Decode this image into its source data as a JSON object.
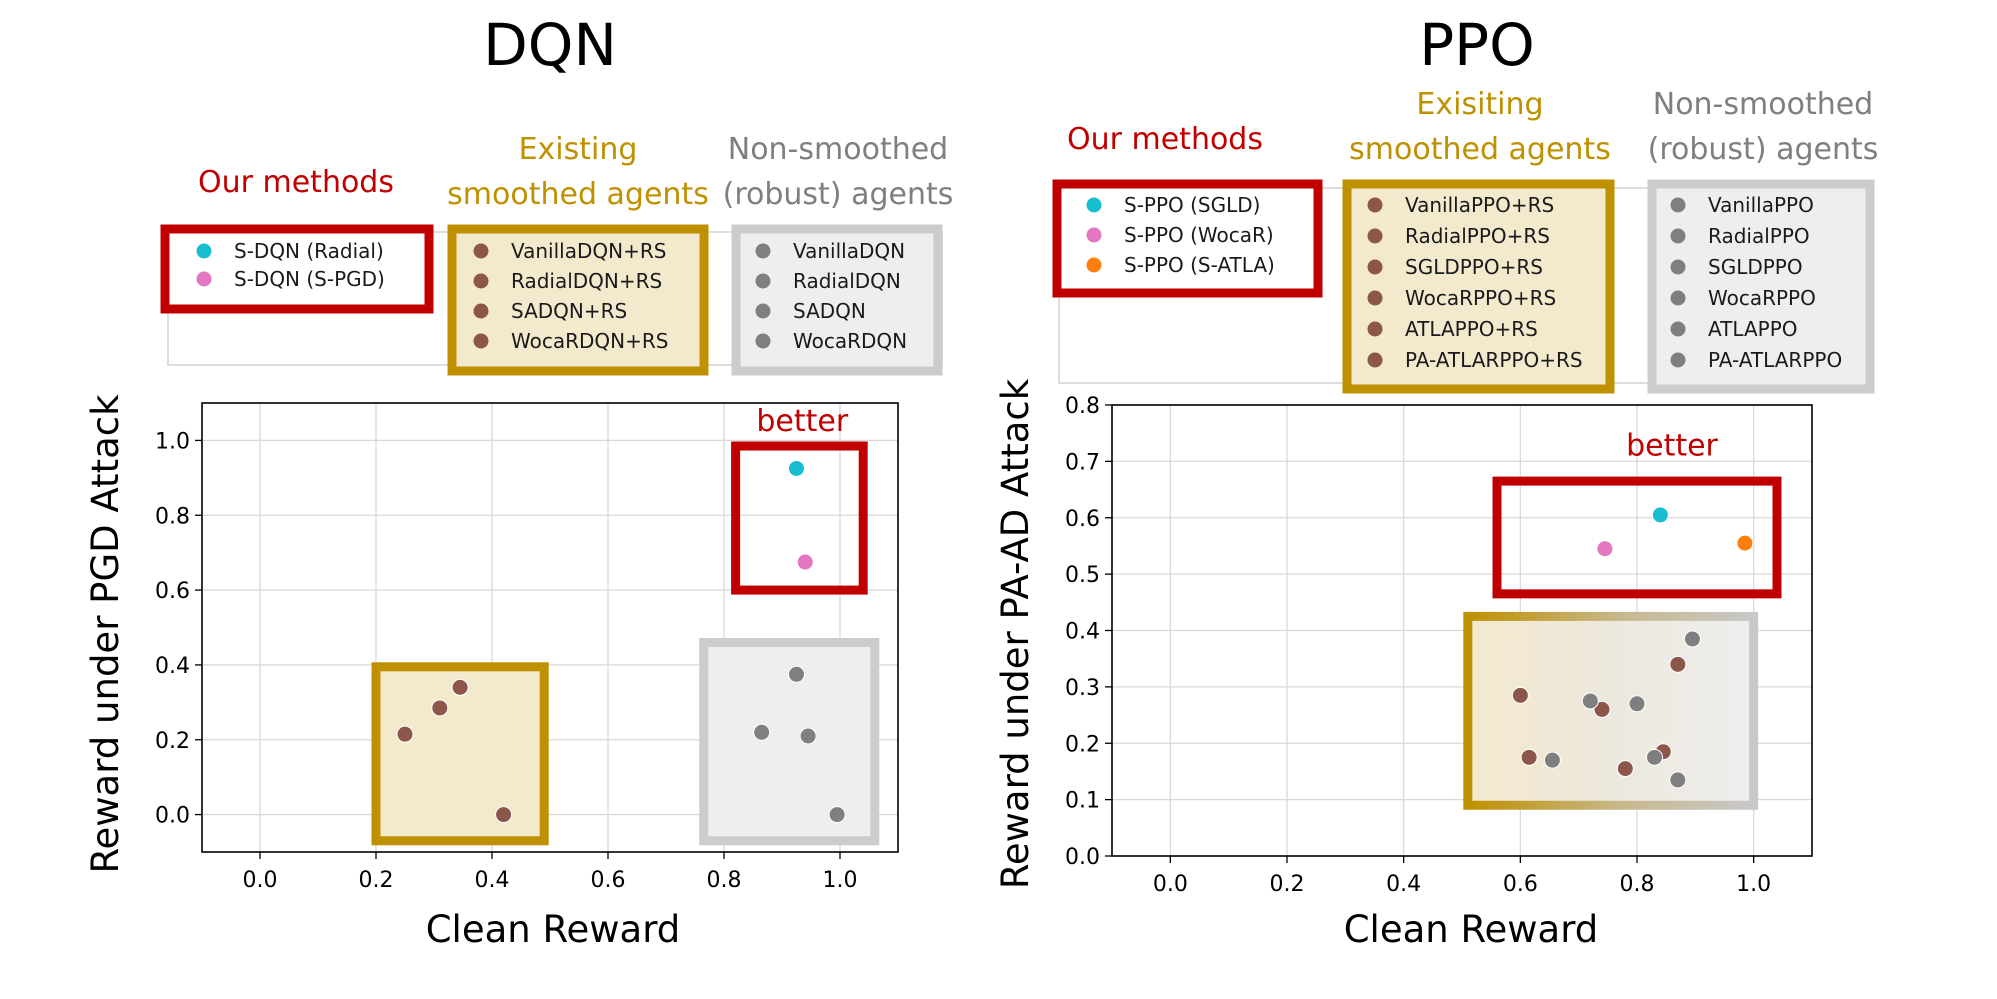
{
  "colors": {
    "ours_frame": "#c00000",
    "smoothed_frame": "#bf9000",
    "smoothed_fill": "#f3e9cd",
    "nonsmoothed_frame": "#cccccc",
    "nonsmoothed_fill": "#eeeeee",
    "ours_text": "#c00000",
    "smoothed_text": "#bf9000",
    "nonsmoothed_text": "#7f7f7f",
    "cyan": "#17becf",
    "pink": "#e377c2",
    "orange": "#ff7f0e",
    "brown": "#8c564b",
    "gray": "#7f7f7f"
  },
  "chart_data": [
    {
      "type": "scatter",
      "title": "DQN",
      "xlabel": "Clean Reward",
      "ylabel": "Reward under PGD Attack",
      "xlim": [
        -0.1,
        1.1
      ],
      "ylim": [
        -0.1,
        1.1
      ],
      "xticks": [
        0.0,
        0.2,
        0.4,
        0.6,
        0.8,
        1.0
      ],
      "yticks": [
        0.0,
        0.2,
        0.4,
        0.6,
        0.8,
        1.0
      ],
      "grid": true,
      "annotation": "better",
      "legend_groups": [
        {
          "label": "Our methods",
          "entries": [
            {
              "name": "S-DQN (Radial)",
              "color": "cyan"
            },
            {
              "name": "S-DQN (S-PGD)",
              "color": "pink"
            }
          ]
        },
        {
          "label": "Existing smoothed agents",
          "entries": [
            {
              "name": "VanillaDQN+RS",
              "color": "brown"
            },
            {
              "name": "RadialDQN+RS",
              "color": "brown"
            },
            {
              "name": "SADQN+RS",
              "color": "brown"
            },
            {
              "name": "WocaRDQN+RS",
              "color": "brown"
            }
          ]
        },
        {
          "label": "Non-smoothed (robust) agents",
          "entries": [
            {
              "name": "VanillaDQN",
              "color": "gray"
            },
            {
              "name": "RadialDQN",
              "color": "gray"
            },
            {
              "name": "SADQN",
              "color": "gray"
            },
            {
              "name": "WocaRDQN",
              "color": "gray"
            }
          ]
        }
      ],
      "points": [
        {
          "x": 0.925,
          "y": 0.925,
          "color": "cyan"
        },
        {
          "x": 0.94,
          "y": 0.675,
          "color": "pink"
        },
        {
          "x": 0.25,
          "y": 0.215,
          "color": "brown"
        },
        {
          "x": 0.31,
          "y": 0.285,
          "color": "brown"
        },
        {
          "x": 0.345,
          "y": 0.34,
          "color": "brown"
        },
        {
          "x": 0.42,
          "y": 0.0,
          "color": "brown"
        },
        {
          "x": 0.925,
          "y": 0.375,
          "color": "gray"
        },
        {
          "x": 0.865,
          "y": 0.22,
          "color": "gray"
        },
        {
          "x": 0.945,
          "y": 0.21,
          "color": "gray"
        },
        {
          "x": 0.995,
          "y": 0.0,
          "color": "gray"
        }
      ]
    },
    {
      "type": "scatter",
      "title": "PPO",
      "xlabel": "Clean Reward",
      "ylabel": "Reward under PA-AD Attack",
      "xlim": [
        -0.1,
        1.1
      ],
      "ylim": [
        0.0,
        0.8
      ],
      "xticks": [
        0.0,
        0.2,
        0.4,
        0.6,
        0.8,
        1.0
      ],
      "yticks": [
        0.0,
        0.1,
        0.2,
        0.3,
        0.4,
        0.5,
        0.6,
        0.7,
        0.8
      ],
      "grid": true,
      "annotation": "better",
      "legend_groups": [
        {
          "label": "Our methods",
          "entries": [
            {
              "name": "S-PPO (SGLD)",
              "color": "cyan"
            },
            {
              "name": "S-PPO (WocaR)",
              "color": "pink"
            },
            {
              "name": "S-PPO (S-ATLA)",
              "color": "orange"
            }
          ]
        },
        {
          "label": "Exisiting smoothed agents",
          "entries": [
            {
              "name": "VanillaPPO+RS",
              "color": "brown"
            },
            {
              "name": "RadialPPO+RS",
              "color": "brown"
            },
            {
              "name": "SGLDPPO+RS",
              "color": "brown"
            },
            {
              "name": "WocaRPPO+RS",
              "color": "brown"
            },
            {
              "name": "ATLAPPO+RS",
              "color": "brown"
            },
            {
              "name": "PA-ATLARPPO+RS",
              "color": "brown"
            }
          ]
        },
        {
          "label": "Non-smoothed (robust) agents",
          "entries": [
            {
              "name": "VanillaPPO",
              "color": "gray"
            },
            {
              "name": "RadialPPO",
              "color": "gray"
            },
            {
              "name": "SGLDPPO",
              "color": "gray"
            },
            {
              "name": "WocaRPPO",
              "color": "gray"
            },
            {
              "name": "ATLAPPO",
              "color": "gray"
            },
            {
              "name": "PA-ATLARPPO",
              "color": "gray"
            }
          ]
        }
      ],
      "points": [
        {
          "x": 0.84,
          "y": 0.605,
          "color": "cyan"
        },
        {
          "x": 0.745,
          "y": 0.545,
          "color": "pink"
        },
        {
          "x": 0.985,
          "y": 0.555,
          "color": "orange"
        },
        {
          "x": 0.6,
          "y": 0.285,
          "color": "brown"
        },
        {
          "x": 0.74,
          "y": 0.26,
          "color": "brown"
        },
        {
          "x": 0.87,
          "y": 0.34,
          "color": "brown"
        },
        {
          "x": 0.615,
          "y": 0.175,
          "color": "brown"
        },
        {
          "x": 0.78,
          "y": 0.155,
          "color": "brown"
        },
        {
          "x": 0.845,
          "y": 0.185,
          "color": "brown"
        },
        {
          "x": 0.895,
          "y": 0.385,
          "color": "gray"
        },
        {
          "x": 0.72,
          "y": 0.275,
          "color": "gray"
        },
        {
          "x": 0.8,
          "y": 0.27,
          "color": "gray"
        },
        {
          "x": 0.655,
          "y": 0.17,
          "color": "gray"
        },
        {
          "x": 0.83,
          "y": 0.175,
          "color": "gray"
        },
        {
          "x": 0.87,
          "y": 0.135,
          "color": "gray"
        }
      ]
    }
  ]
}
